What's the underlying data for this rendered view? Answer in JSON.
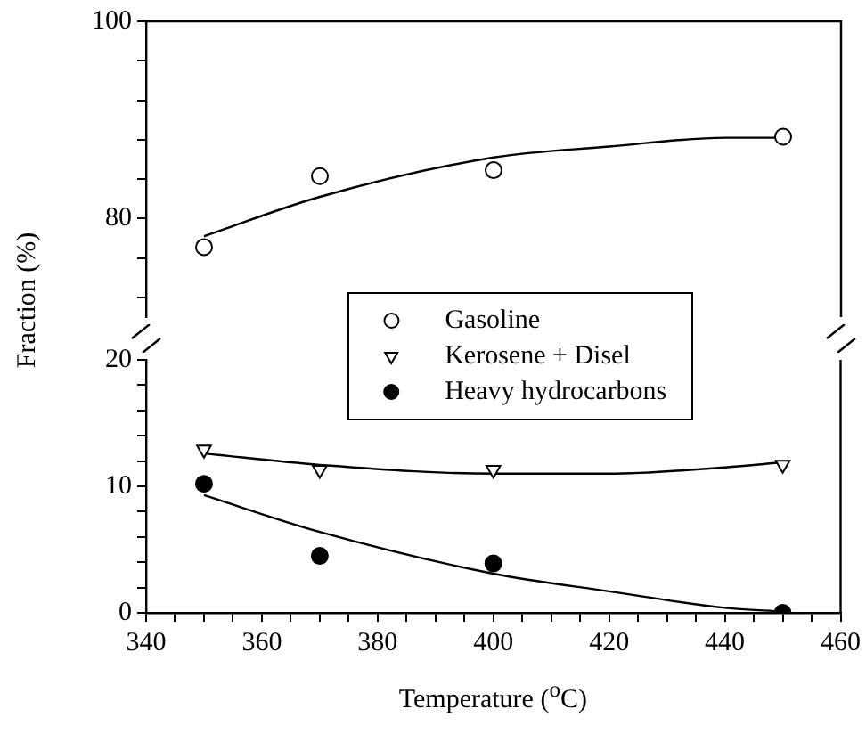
{
  "chart_data": [
    {
      "type": "scatter",
      "ylabel": "Fraction (%)",
      "tick_labels": "y",
      "xlim": [
        340,
        460
      ],
      "ylim": [
        70,
        100
      ],
      "yticks": [
        {
          "value": 72,
          "label": null
        },
        {
          "value": 76,
          "label": null
        },
        80,
        {
          "value": 84,
          "label": null
        },
        {
          "value": 88,
          "label": null
        },
        {
          "value": 92,
          "label": null
        },
        {
          "value": 96,
          "label": null
        },
        100
      ],
      "x": [
        350,
        370,
        400,
        450
      ],
      "legend": "bottom",
      "grid": false,
      "series": [
        {
          "name": "Gasoline",
          "color": "#000000",
          "marker": "circle",
          "values": [
            77.1,
            84.3,
            84.9,
            88.3
          ]
        },
        {
          "type": "line",
          "color": "#000000",
          "marker": "none",
          "line_style": "solid",
          "x": [
            350,
            370,
            400,
            420,
            440,
            450
          ],
          "values": [
            78.2,
            82.2,
            86.2,
            87.3,
            88.2,
            88.2
          ]
        }
      ]
    },
    {
      "type": "scatter",
      "xlabel": "Temperature ($^{o}$C)",
      "xlim": [
        340,
        460
      ],
      "xticks": [
        340,
        {
          "value": 345,
          "label": null
        },
        {
          "value": 350,
          "label": null
        },
        {
          "value": 355,
          "label": null
        },
        360,
        {
          "value": 365,
          "label": null
        },
        {
          "value": 370,
          "label": null
        },
        {
          "value": 375,
          "label": null
        },
        380,
        {
          "value": 385,
          "label": null
        },
        {
          "value": 390,
          "label": null
        },
        {
          "value": 395,
          "label": null
        },
        400,
        {
          "value": 405,
          "label": null
        },
        {
          "value": 410,
          "label": null
        },
        {
          "value": 415,
          "label": null
        },
        420,
        {
          "value": 425,
          "label": null
        },
        {
          "value": 430,
          "label": null
        },
        {
          "value": 435,
          "label": null
        },
        440,
        {
          "value": 445,
          "label": null
        },
        {
          "value": 450,
          "label": null
        },
        {
          "value": 455,
          "label": null
        },
        460
      ],
      "ylim": [
        0,
        20
      ],
      "yticks": [
        0,
        {
          "value": 2,
          "label": null
        },
        {
          "value": 4,
          "label": null
        },
        {
          "value": 6,
          "label": null
        },
        {
          "value": 8,
          "label": null
        },
        10,
        {
          "value": 12,
          "label": null
        },
        {
          "value": 14,
          "label": null
        },
        {
          "value": 16,
          "label": null
        },
        {
          "value": 18,
          "label": null
        },
        20
      ],
      "x": [
        350,
        370,
        400,
        450
      ],
      "legend": "top",
      "grid": false,
      "series": [
        {
          "name": "Kerosene + Disel",
          "color": "#000000",
          "marker": "triangle",
          "values": [
            12.9,
            11.3,
            11.3,
            11.7
          ]
        },
        {
          "name": "Heavy hydrocarbons",
          "color": "#000000",
          "marker": "circle",
          "values": [
            10.2,
            4.5,
            3.9,
            0
          ]
        },
        {
          "type": "line",
          "color": "#000000",
          "marker": "none",
          "line_style": "solid",
          "x": [
            350,
            370,
            400,
            420,
            440,
            450
          ],
          "values": [
            12.6,
            11.7,
            11.0,
            11.0,
            11.5,
            11.9
          ]
        },
        {
          "type": "line",
          "color": "#000000",
          "marker": "none",
          "line_style": "solid",
          "x": [
            350,
            370,
            400,
            420,
            440,
            450
          ],
          "values": [
            9.3,
            6.4,
            3.1,
            1.7,
            0.4,
            0.1
          ]
        }
      ]
    }
  ]
}
